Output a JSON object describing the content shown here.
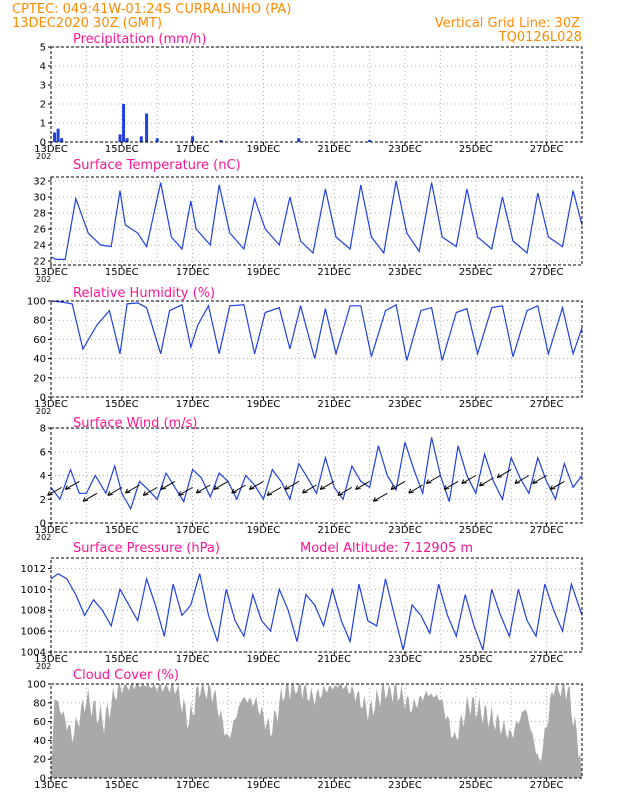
{
  "header": {
    "line1": "CPTEC:   049:41W-01:24S   CURRALINHO (PA)",
    "line2": "13DEC2020 30Z (GMT)",
    "grid_label": "Vertical Grid Line: 30Z",
    "code": "TQ0126L028"
  },
  "colors": {
    "header": "#ff8c00",
    "title": "#ff1493",
    "series": "#2040e0",
    "cloud": "#a9a9a9"
  },
  "x_ticks": [
    "13DEC",
    "15DEC",
    "17DEC",
    "19DEC",
    "21DEC",
    "23DEC",
    "25DEC",
    "27DEC"
  ],
  "x_cut_label": "202",
  "chart_data": [
    {
      "type": "bar",
      "title": "Precipitation (mm/h)",
      "ylim": [
        0,
        5
      ],
      "yticks": [
        "0",
        "1",
        "2",
        "3",
        "4",
        "5"
      ],
      "x_unit": "days since 13DEC 00Z",
      "x": [
        0.1,
        0.2,
        0.3,
        1.95,
        2.05,
        2.15,
        2.55,
        2.7,
        3.0,
        4.0,
        4.8,
        7.0,
        9.0
      ],
      "values": [
        0.5,
        0.7,
        0.2,
        0.4,
        2.0,
        0.2,
        0.3,
        1.5,
        0.2,
        0.3,
        0.1,
        0.2,
        0.1
      ]
    },
    {
      "type": "line",
      "title": "Surface Temperature (nC)",
      "ylim": [
        21.5,
        32.5
      ],
      "yticks": [
        "22",
        "24",
        "26",
        "28",
        "30",
        "32"
      ],
      "x_unit": "days since 13DEC 00Z",
      "x": [
        0,
        0.15,
        0.4,
        0.7,
        1.05,
        1.4,
        1.7,
        1.95,
        2.1,
        2.45,
        2.7,
        3.1,
        3.4,
        3.7,
        3.95,
        4.1,
        4.5,
        4.75,
        5.05,
        5.45,
        5.75,
        6.05,
        6.45,
        6.75,
        7.05,
        7.4,
        7.75,
        8.05,
        8.45,
        8.75,
        9.05,
        9.4,
        9.75,
        10.05,
        10.4,
        10.75,
        11.05,
        11.45,
        11.75,
        12.05,
        12.45,
        12.75,
        13.05,
        13.45,
        13.75,
        14.05,
        14.45,
        14.75,
        15.0
      ],
      "values": [
        22.5,
        22.2,
        22.2,
        29.8,
        25.5,
        24.0,
        23.8,
        30.8,
        26.5,
        25.5,
        23.8,
        31.8,
        25.0,
        23.5,
        29.5,
        26.0,
        24.0,
        31.5,
        25.5,
        23.5,
        29.8,
        26.0,
        24.0,
        30.0,
        24.5,
        23.0,
        31.0,
        25.0,
        23.5,
        31.5,
        25.0,
        23.0,
        32.0,
        25.5,
        23.2,
        31.8,
        25.0,
        23.8,
        31.0,
        25.0,
        23.5,
        30.0,
        24.5,
        23.0,
        30.5,
        25.0,
        23.8,
        30.8,
        26.5
      ]
    },
    {
      "type": "line",
      "title": "Relative Humidity (%)",
      "ylim": [
        0,
        100
      ],
      "yticks": [
        "0",
        "20",
        "40",
        "60",
        "80",
        "100"
      ],
      "x_unit": "days since 13DEC 00Z",
      "x": [
        0,
        0.3,
        0.6,
        0.9,
        1.3,
        1.65,
        1.95,
        2.15,
        2.45,
        2.7,
        3.1,
        3.35,
        3.7,
        3.95,
        4.15,
        4.45,
        4.75,
        5.05,
        5.45,
        5.75,
        6.05,
        6.45,
        6.75,
        7.05,
        7.45,
        7.75,
        8.05,
        8.45,
        8.75,
        9.05,
        9.45,
        9.75,
        10.05,
        10.45,
        10.75,
        11.05,
        11.45,
        11.75,
        12.05,
        12.45,
        12.75,
        13.05,
        13.45,
        13.75,
        14.05,
        14.45,
        14.75,
        15.0
      ],
      "values": [
        100,
        99,
        97,
        50,
        75,
        90,
        45,
        97,
        98,
        93,
        45,
        90,
        96,
        52,
        75,
        95,
        45,
        95,
        96,
        45,
        88,
        93,
        50,
        95,
        40,
        92,
        45,
        95,
        95,
        42,
        90,
        96,
        38,
        90,
        93,
        38,
        88,
        92,
        45,
        93,
        95,
        42,
        90,
        95,
        45,
        93,
        45,
        72
      ]
    },
    {
      "type": "line",
      "title": "Surface Wind (m/s)",
      "ylim": [
        0,
        8
      ],
      "yticks": [
        "0",
        "2",
        "4",
        "6",
        "8"
      ],
      "x_unit": "days since 13DEC 00Z",
      "x": [
        0,
        0.25,
        0.55,
        0.8,
        1.0,
        1.25,
        1.55,
        1.8,
        2.0,
        2.25,
        2.5,
        2.75,
        3.0,
        3.25,
        3.5,
        3.75,
        4.0,
        4.25,
        4.5,
        4.75,
        5.0,
        5.25,
        5.5,
        5.75,
        6.0,
        6.25,
        6.5,
        6.75,
        7.0,
        7.25,
        7.5,
        7.75,
        8.0,
        8.25,
        8.5,
        8.75,
        9.0,
        9.25,
        9.5,
        9.75,
        10.0,
        10.25,
        10.5,
        10.75,
        11.0,
        11.25,
        11.5,
        11.75,
        12.0,
        12.25,
        12.5,
        12.75,
        13.0,
        13.25,
        13.5,
        13.75,
        14.0,
        14.25,
        14.5,
        14.75,
        15.0
      ],
      "values": [
        3.0,
        2.0,
        4.5,
        2.5,
        2.5,
        4.0,
        2.5,
        4.8,
        2.5,
        1.2,
        3.5,
        2.8,
        2.0,
        4.2,
        3.0,
        1.8,
        4.5,
        3.8,
        2.2,
        4.2,
        3.5,
        2.0,
        4.0,
        3.2,
        2.0,
        4.5,
        3.5,
        2.0,
        5.0,
        3.8,
        2.5,
        5.5,
        3.0,
        2.0,
        4.8,
        3.5,
        3.0,
        6.5,
        4.0,
        2.8,
        6.8,
        4.5,
        2.5,
        7.2,
        4.0,
        1.8,
        6.5,
        4.0,
        2.5,
        5.8,
        3.5,
        2.0,
        5.5,
        3.8,
        2.5,
        5.5,
        3.5,
        2.0,
        5.0,
        3.0,
        4.0
      ],
      "arrows_x": [
        0.3,
        0.8,
        1.3,
        2.0,
        2.5,
        3.0,
        3.5,
        4.0,
        4.5,
        5.0,
        5.5,
        6.0,
        6.5,
        7.0,
        7.5,
        8.0,
        8.5,
        9.0,
        9.5,
        10.0,
        10.5,
        11.0,
        11.5,
        12.0,
        12.5,
        13.0,
        13.5,
        14.0,
        14.5
      ],
      "arrows_speed": [
        3,
        3.5,
        2.5,
        3,
        3.2,
        3,
        3.5,
        3,
        3.2,
        3.5,
        3.2,
        3.5,
        3,
        3.5,
        3.2,
        3.5,
        3,
        3.5,
        2.5,
        3.5,
        3.2,
        4,
        3.5,
        4,
        3.8,
        4.5,
        4,
        4,
        3.5
      ]
    },
    {
      "type": "line",
      "title": "Surface Pressure (hPa)",
      "annotation": "Model Altitude: 7.12905 m",
      "ylim": [
        1004,
        1013
      ],
      "yticks": [
        "1004",
        "1006",
        "1008",
        "1010",
        "1012"
      ],
      "x_unit": "days since 13DEC 00Z",
      "x": [
        0,
        0.2,
        0.45,
        0.7,
        0.95,
        1.2,
        1.45,
        1.7,
        1.95,
        2.2,
        2.45,
        2.7,
        2.95,
        3.2,
        3.45,
        3.7,
        3.95,
        4.2,
        4.45,
        4.7,
        4.95,
        5.2,
        5.45,
        5.7,
        5.95,
        6.2,
        6.45,
        6.7,
        6.95,
        7.2,
        7.45,
        7.7,
        7.95,
        8.2,
        8.45,
        8.7,
        8.95,
        9.2,
        9.45,
        9.7,
        9.95,
        10.2,
        10.45,
        10.7,
        10.95,
        11.2,
        11.45,
        11.7,
        11.95,
        12.2,
        12.45,
        12.7,
        12.95,
        13.2,
        13.45,
        13.7,
        13.95,
        14.2,
        14.45,
        14.7,
        15.0
      ],
      "values": [
        1011.0,
        1011.5,
        1011.0,
        1009.5,
        1007.5,
        1009.0,
        1008.0,
        1006.5,
        1010.0,
        1008.5,
        1007.0,
        1011.0,
        1008.5,
        1005.5,
        1010.5,
        1007.5,
        1008.5,
        1011.5,
        1007.5,
        1005.0,
        1010.0,
        1007.0,
        1005.5,
        1009.5,
        1007.0,
        1006.0,
        1010.0,
        1008.0,
        1005.0,
        1009.5,
        1008.5,
        1006.5,
        1010.0,
        1007.0,
        1005.0,
        1010.5,
        1007.0,
        1006.5,
        1011.0,
        1007.5,
        1004.2,
        1008.5,
        1007.5,
        1005.8,
        1010.5,
        1007.5,
        1005.5,
        1009.5,
        1006.5,
        1004.2,
        1010.0,
        1007.5,
        1005.5,
        1010.0,
        1007.0,
        1005.5,
        1010.5,
        1008.0,
        1006.0,
        1010.5,
        1007.5
      ]
    },
    {
      "type": "area",
      "title": "Cloud Cover (%)",
      "ylim": [
        0,
        100
      ],
      "yticks": [
        "0",
        "20",
        "40",
        "60",
        "80",
        "100"
      ],
      "x_unit": "days since 13DEC 00Z",
      "x": [
        0,
        0.3,
        0.6,
        1.0,
        1.5,
        1.9,
        2.2,
        2.6,
        3.0,
        3.5,
        3.9,
        4.2,
        4.6,
        5.0,
        5.4,
        5.8,
        6.2,
        6.6,
        7.0,
        7.4,
        7.8,
        8.2,
        8.6,
        9.0,
        9.4,
        9.8,
        10.2,
        10.6,
        11.0,
        11.4,
        11.8,
        12.2,
        12.6,
        13.0,
        13.4,
        13.8,
        14.2,
        14.6,
        15.0
      ],
      "values": [
        95,
        70,
        45,
        85,
        60,
        98,
        100,
        99,
        97,
        100,
        60,
        98,
        90,
        40,
        85,
        80,
        50,
        95,
        100,
        85,
        95,
        99,
        90,
        70,
        95,
        92,
        75,
        90,
        85,
        40,
        80,
        70,
        60,
        45,
        75,
        15,
        98,
        95,
        15
      ]
    }
  ]
}
